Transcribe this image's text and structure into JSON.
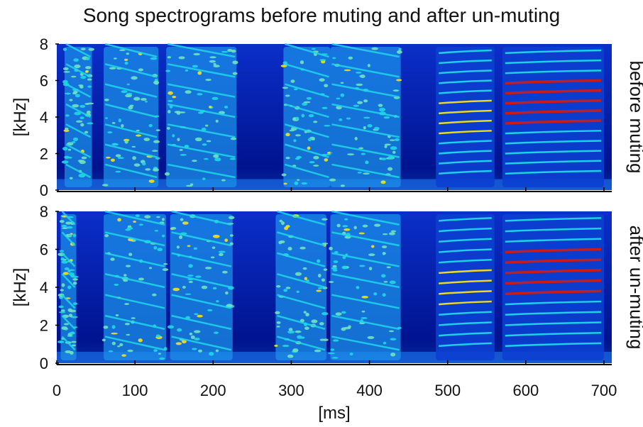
{
  "title": "Song spectrograms before muting and after un-muting",
  "chart_data": [
    {
      "type": "heatmap",
      "panel_label": "before muting",
      "ylabel": "[kHz]",
      "yticks": [
        0,
        2,
        4,
        6,
        8
      ],
      "ylim": [
        0,
        8
      ],
      "xlim": [
        0,
        710
      ],
      "colormap": "jet",
      "syllables_ms": [
        [
          10,
          45
        ],
        [
          60,
          130
        ],
        [
          140,
          230
        ],
        [
          290,
          350
        ],
        [
          350,
          440
        ],
        [
          485,
          560
        ],
        [
          570,
          700
        ]
      ],
      "harmonic_stack_ms": [
        [
          485,
          560
        ],
        [
          570,
          700
        ]
      ]
    },
    {
      "type": "heatmap",
      "panel_label": "after un-muting",
      "ylabel": "[kHz]",
      "xlabel": "[ms]",
      "yticks": [
        0,
        2,
        4,
        6,
        8
      ],
      "xticks": [
        0,
        100,
        200,
        300,
        400,
        500,
        600,
        700
      ],
      "ylim": [
        0,
        8
      ],
      "xlim": [
        0,
        710
      ],
      "colormap": "jet",
      "syllables_ms": [
        [
          5,
          25
        ],
        [
          60,
          140
        ],
        [
          145,
          225
        ],
        [
          280,
          345
        ],
        [
          350,
          440
        ],
        [
          485,
          560
        ],
        [
          570,
          700
        ]
      ],
      "harmonic_stack_ms": [
        [
          485,
          560
        ],
        [
          570,
          700
        ]
      ]
    }
  ],
  "colors": {
    "background_low": "#00138f",
    "low": "#0a3fd8",
    "mid": "#1fd7e8",
    "high": "#f5e21a",
    "peak": "#d41a10"
  }
}
